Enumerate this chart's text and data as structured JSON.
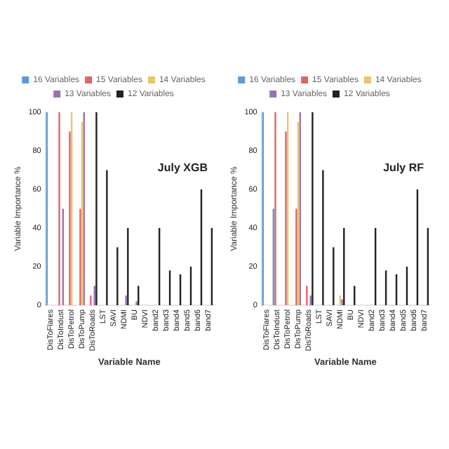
{
  "chart_data": [
    {
      "type": "bar",
      "annotations": [
        "July XGB"
      ],
      "ylabel": "Variable Importance %",
      "xlabel": "Variable Name",
      "categories": [
        "DisToFlares",
        "DisToIndust",
        "DisToPetrol",
        "DisToPump",
        "DisToRoads",
        "LST",
        "SAVI",
        "NDMI",
        "BU",
        "NDVI",
        "band2",
        "band3",
        "band4",
        "band5",
        "band6",
        "band7"
      ],
      "legend": "top",
      "grid": false,
      "ylim": [
        0,
        100
      ],
      "yticks": [
        0,
        20,
        40,
        60,
        80,
        100
      ],
      "series": [
        {
          "name": "16 Variables",
          "color": "#5b9bd5",
          "values": [
            100,
            null,
            null,
            null,
            null,
            null,
            null,
            null,
            null,
            null,
            null,
            null,
            null,
            null,
            null,
            null
          ]
        },
        {
          "name": "15 Variables",
          "color": "#e06666",
          "values": [
            null,
            100,
            90,
            50,
            5,
            null,
            null,
            null,
            null,
            null,
            null,
            null,
            null,
            null,
            null,
            null
          ]
        },
        {
          "name": "14 Variables",
          "color": "#e8c66a",
          "values": [
            null,
            null,
            100,
            95,
            null,
            null,
            null,
            null,
            null,
            null,
            null,
            null,
            null,
            null,
            null,
            null
          ]
        },
        {
          "name": "13 Variables",
          "color": "#9b72b0",
          "values": [
            null,
            50,
            null,
            100,
            10,
            null,
            null,
            5,
            2,
            null,
            null,
            null,
            null,
            null,
            null,
            null
          ]
        },
        {
          "name": "12 Variables",
          "color": "#222222",
          "values": [
            null,
            null,
            null,
            null,
            100,
            70,
            30,
            40,
            10,
            0,
            40,
            18,
            16,
            20,
            60,
            40
          ]
        }
      ]
    },
    {
      "type": "bar",
      "annotations": [
        "July RF"
      ],
      "ylabel": "Variable Importance %",
      "xlabel": "Variable Name",
      "categories": [
        "DisToFlares",
        "DisToIndust",
        "DisToPetrol",
        "DisToPump",
        "DisToRoads",
        "LST",
        "SAVI",
        "NDMI",
        "BU",
        "NDVI",
        "band2",
        "band3",
        "band4",
        "band5",
        "band6",
        "band7"
      ],
      "legend": "top",
      "grid": false,
      "ylim": [
        0,
        100
      ],
      "yticks": [
        0,
        20,
        40,
        60,
        80,
        100
      ],
      "series": [
        {
          "name": "16 Variables",
          "color": "#5b9bd5",
          "values": [
            100,
            50,
            null,
            null,
            null,
            null,
            null,
            null,
            null,
            null,
            null,
            null,
            null,
            null,
            null,
            null
          ]
        },
        {
          "name": "15 Variables",
          "color": "#e06666",
          "values": [
            null,
            100,
            90,
            50,
            10,
            null,
            null,
            null,
            null,
            null,
            null,
            null,
            null,
            null,
            null,
            null
          ]
        },
        {
          "name": "14 Variables",
          "color": "#e8c66a",
          "values": [
            null,
            null,
            100,
            95,
            null,
            null,
            null,
            5,
            null,
            null,
            null,
            null,
            null,
            null,
            null,
            null
          ]
        },
        {
          "name": "13 Variables",
          "color": "#9b72b0",
          "values": [
            null,
            null,
            null,
            100,
            5,
            null,
            null,
            3,
            null,
            null,
            null,
            null,
            null,
            null,
            null,
            null
          ]
        },
        {
          "name": "12 Variables",
          "color": "#222222",
          "values": [
            null,
            null,
            null,
            null,
            100,
            70,
            30,
            40,
            10,
            0,
            40,
            18,
            16,
            20,
            60,
            40
          ]
        }
      ]
    }
  ]
}
